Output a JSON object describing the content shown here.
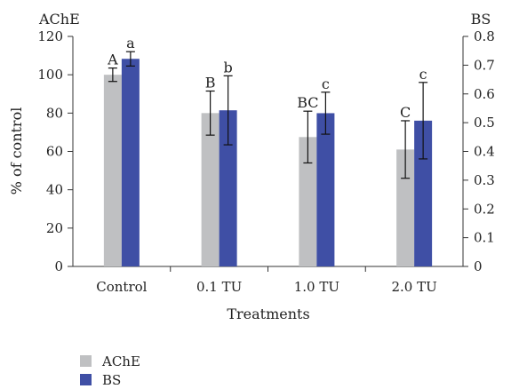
{
  "chart_data": {
    "type": "bar",
    "categories": [
      "Control",
      "0.1 TU",
      "1.0 TU",
      "2.0 TU"
    ],
    "xlabel": "Treatments",
    "ylabel_left": "% of control",
    "left_axis_label": "AChE",
    "right_axis_label": "BS",
    "ylim_left": [
      0,
      120
    ],
    "ylim_right": [
      0,
      0.8
    ],
    "yticks_left": [
      "0",
      "20",
      "40",
      "60",
      "80",
      "100",
      "120"
    ],
    "yticks_right": [
      "0",
      "0.1",
      "0.2",
      "0.3",
      "0.4",
      "0.5",
      "0.6",
      "0.7",
      "0.8"
    ],
    "grid": false,
    "legend_position": "bottom-left",
    "series": [
      {
        "name": "AChE",
        "axis": "left",
        "color": "#bfc0c2",
        "values": [
          100,
          80,
          67.5,
          61
        ],
        "errors": [
          3.5,
          11.5,
          13.5,
          15
        ],
        "letters": [
          "A",
          "B",
          "BC",
          "C"
        ]
      },
      {
        "name": "BS",
        "axis": "right",
        "color": "#3f4fa5",
        "values": [
          0.722,
          0.543,
          0.533,
          0.507
        ],
        "errors": [
          0.025,
          0.12,
          0.073,
          0.133
        ],
        "letters": [
          "a",
          "b",
          "c",
          "c"
        ]
      }
    ]
  }
}
